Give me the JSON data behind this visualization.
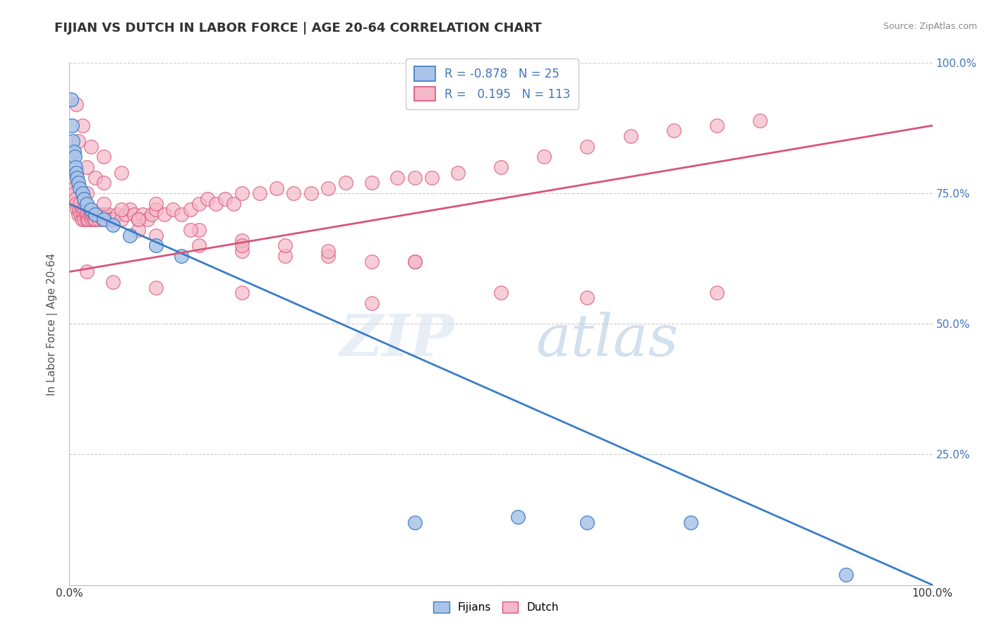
{
  "title": "FIJIAN VS DUTCH IN LABOR FORCE | AGE 20-64 CORRELATION CHART",
  "source": "Source: ZipAtlas.com",
  "ylabel": "In Labor Force | Age 20-64",
  "fijian_color": "#aac4e8",
  "dutch_color": "#f5b8c8",
  "fijian_line_color": "#3a7cc7",
  "dutch_line_color": "#d9547a",
  "legend_r_fijian": "-0.878",
  "legend_n_fijian": "25",
  "legend_r_dutch": "0.195",
  "legend_n_dutch": "113",
  "fijian_points_x": [
    0.002,
    0.003,
    0.004,
    0.005,
    0.006,
    0.007,
    0.008,
    0.009,
    0.01,
    0.012,
    0.015,
    0.017,
    0.02,
    0.025,
    0.03,
    0.04,
    0.05,
    0.07,
    0.1,
    0.13,
    0.4,
    0.52,
    0.6,
    0.72,
    0.9
  ],
  "fijian_points_y": [
    0.93,
    0.88,
    0.85,
    0.83,
    0.82,
    0.8,
    0.79,
    0.78,
    0.77,
    0.76,
    0.75,
    0.74,
    0.73,
    0.72,
    0.71,
    0.7,
    0.69,
    0.67,
    0.65,
    0.63,
    0.12,
    0.13,
    0.12,
    0.12,
    0.02
  ],
  "dutch_points_x": [
    0.002,
    0.003,
    0.004,
    0.005,
    0.006,
    0.007,
    0.008,
    0.009,
    0.01,
    0.011,
    0.012,
    0.013,
    0.014,
    0.015,
    0.016,
    0.017,
    0.018,
    0.019,
    0.02,
    0.021,
    0.022,
    0.023,
    0.024,
    0.025,
    0.026,
    0.027,
    0.028,
    0.029,
    0.03,
    0.032,
    0.034,
    0.036,
    0.038,
    0.04,
    0.042,
    0.045,
    0.048,
    0.05,
    0.055,
    0.06,
    0.065,
    0.07,
    0.075,
    0.08,
    0.085,
    0.09,
    0.095,
    0.1,
    0.11,
    0.12,
    0.13,
    0.14,
    0.15,
    0.16,
    0.17,
    0.18,
    0.19,
    0.2,
    0.22,
    0.24,
    0.26,
    0.28,
    0.3,
    0.32,
    0.35,
    0.38,
    0.4,
    0.42,
    0.45,
    0.5,
    0.55,
    0.6,
    0.65,
    0.7,
    0.75,
    0.8,
    0.01,
    0.02,
    0.03,
    0.04,
    0.06,
    0.08,
    0.1,
    0.15,
    0.2,
    0.25,
    0.3,
    0.35,
    0.4,
    0.008,
    0.015,
    0.025,
    0.04,
    0.06,
    0.1,
    0.15,
    0.2,
    0.25,
    0.3,
    0.5,
    0.6,
    0.75,
    0.02,
    0.05,
    0.1,
    0.2,
    0.35,
    0.02,
    0.04,
    0.08,
    0.14,
    0.2,
    0.4
  ],
  "dutch_points_y": [
    0.79,
    0.78,
    0.77,
    0.76,
    0.75,
    0.74,
    0.73,
    0.72,
    0.71,
    0.72,
    0.73,
    0.71,
    0.7,
    0.72,
    0.71,
    0.7,
    0.72,
    0.71,
    0.7,
    0.71,
    0.7,
    0.71,
    0.72,
    0.71,
    0.7,
    0.71,
    0.7,
    0.71,
    0.7,
    0.71,
    0.7,
    0.71,
    0.7,
    0.71,
    0.7,
    0.71,
    0.7,
    0.7,
    0.71,
    0.7,
    0.71,
    0.72,
    0.71,
    0.7,
    0.71,
    0.7,
    0.71,
    0.72,
    0.71,
    0.72,
    0.71,
    0.72,
    0.73,
    0.74,
    0.73,
    0.74,
    0.73,
    0.75,
    0.75,
    0.76,
    0.75,
    0.75,
    0.76,
    0.77,
    0.77,
    0.78,
    0.78,
    0.78,
    0.79,
    0.8,
    0.82,
    0.84,
    0.86,
    0.87,
    0.88,
    0.89,
    0.85,
    0.8,
    0.78,
    0.77,
    0.72,
    0.68,
    0.67,
    0.65,
    0.64,
    0.63,
    0.63,
    0.62,
    0.62,
    0.92,
    0.88,
    0.84,
    0.82,
    0.79,
    0.73,
    0.68,
    0.66,
    0.65,
    0.64,
    0.56,
    0.55,
    0.56,
    0.6,
    0.58,
    0.57,
    0.56,
    0.54,
    0.75,
    0.73,
    0.7,
    0.68,
    0.65,
    0.62
  ],
  "fijian_line_x": [
    0.0,
    1.0
  ],
  "fijian_line_y": [
    0.73,
    0.0
  ],
  "dutch_line_x": [
    0.0,
    1.0
  ],
  "dutch_line_y": [
    0.6,
    0.88
  ],
  "xlim": [
    0.0,
    1.0
  ],
  "ylim": [
    0.0,
    1.0
  ],
  "title_color": "#333333",
  "title_fontsize": 13,
  "right_tick_color": "#4477bb"
}
